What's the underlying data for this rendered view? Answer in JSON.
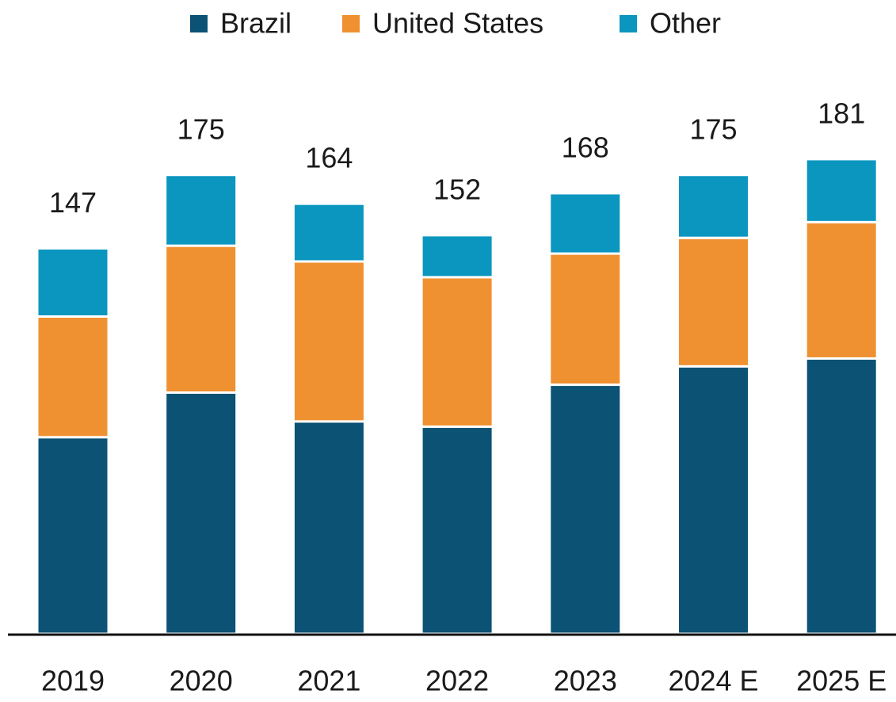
{
  "chart_data": {
    "type": "stacked_bar",
    "categories": [
      "2019",
      "2020",
      "2021",
      "2022",
      "2023",
      "2024 E",
      "2025 E"
    ],
    "series": [
      {
        "name": "Brazil",
        "color": "#0b5275",
        "values": [
          75,
          92,
          81,
          79,
          95,
          102,
          105
        ]
      },
      {
        "name": "United States",
        "color": "#f09131",
        "values": [
          46,
          56,
          61,
          57,
          50,
          49,
          52
        ]
      },
      {
        "name": "Other",
        "color": "#0b96bf",
        "values": [
          26,
          27,
          22,
          16,
          23,
          24,
          24
        ]
      }
    ],
    "totals": [
      147,
      175,
      164,
      152,
      168,
      175,
      181
    ],
    "legend": "top"
  }
}
